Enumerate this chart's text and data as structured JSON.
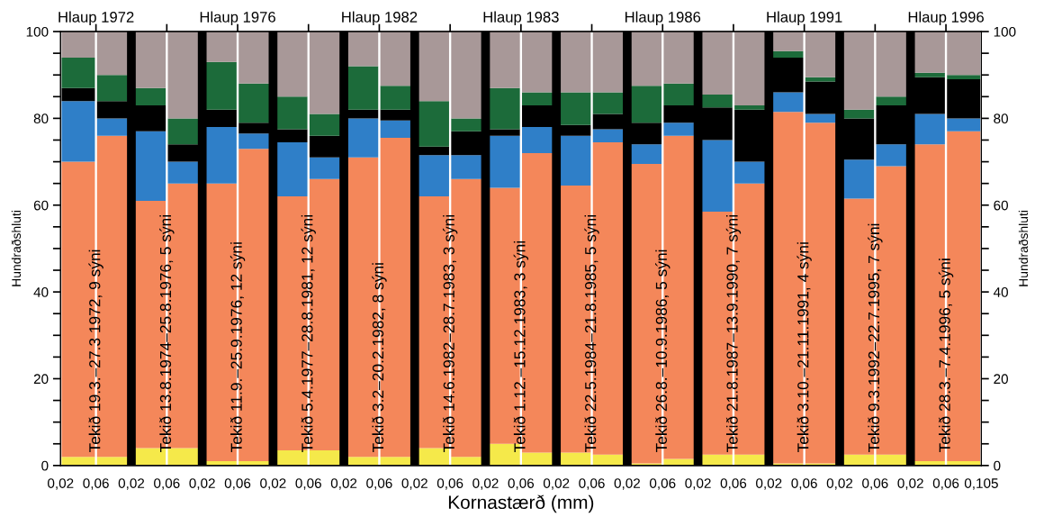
{
  "chart_data": {
    "type": "bar",
    "stacked": true,
    "xlabel": "Kornastærð (mm)",
    "ylabel": "Hundraðshluti",
    "y2label": "Hundraðshluti",
    "categories": [
      null,
      null,
      null,
      null,
      null,
      null,
      null,
      null,
      null,
      null,
      null,
      null,
      null,
      null,
      null,
      null,
      null,
      null,
      null,
      null,
      null,
      null,
      null,
      null,
      null,
      null
    ],
    "series": [
      {
        "color": "#f5e94a",
        "values": [
          2,
          2,
          4,
          4,
          1,
          1,
          3.5,
          3.5,
          2,
          2,
          4,
          2,
          5,
          3,
          3,
          2.5,
          0.5,
          1.5,
          2.5,
          2.5,
          0.5,
          0.5,
          2.5,
          2.5,
          1,
          1
        ]
      },
      {
        "color": "#f4875a",
        "values": [
          68,
          74,
          57,
          61,
          64,
          72,
          58.5,
          62.5,
          69,
          73.5,
          58,
          64,
          59,
          69,
          61.5,
          72,
          69,
          74.5,
          56,
          62.5,
          81,
          78.5,
          59,
          66.5,
          73,
          76
        ]
      },
      {
        "color": "#2f7fc8",
        "values": [
          14,
          4,
          16,
          5,
          13,
          3.5,
          12.5,
          5,
          9,
          4,
          9.5,
          5.5,
          12,
          6,
          11.5,
          3,
          4.5,
          3,
          16.5,
          5,
          4.5,
          2,
          9,
          5,
          7,
          3
        ]
      },
      {
        "color": "#000000",
        "values": [
          3,
          4,
          6,
          4,
          4,
          2.5,
          3,
          5,
          2,
          2.5,
          2,
          5.5,
          1.5,
          5,
          2.5,
          3.5,
          5,
          4,
          7.5,
          12,
          8,
          7.5,
          9.5,
          9,
          8.5,
          9
        ]
      },
      {
        "color": "#1c6b3a",
        "values": [
          7,
          6,
          4,
          6,
          11,
          9,
          7.5,
          5,
          10,
          5.5,
          10.5,
          3,
          9.5,
          3,
          7.5,
          5,
          8.5,
          5,
          3,
          1,
          1.5,
          1,
          2,
          2,
          1,
          1
        ]
      },
      {
        "color": "#a89898",
        "values": [
          6,
          10,
          13,
          20,
          7,
          12,
          15,
          19,
          8,
          12.5,
          16,
          20,
          13,
          14,
          14,
          14,
          12.5,
          12,
          14.5,
          17,
          4.5,
          10.5,
          18,
          15,
          9.5,
          10
        ]
      }
    ],
    "ylim": [
      0,
      100
    ],
    "yticks": [
      0,
      {
        "value": 5,
        "label": null
      },
      {
        "value": 10,
        "label": null
      },
      {
        "value": 15,
        "label": null
      },
      20,
      {
        "value": 25,
        "label": null
      },
      {
        "value": 30,
        "label": null
      },
      {
        "value": 35,
        "label": null
      },
      40,
      {
        "value": 45,
        "label": null
      },
      {
        "value": 50,
        "label": null
      },
      {
        "value": 55,
        "label": null
      },
      60,
      {
        "value": 65,
        "label": null
      },
      {
        "value": 70,
        "label": null
      },
      {
        "value": 75,
        "label": null
      },
      80,
      {
        "value": 85,
        "label": null
      },
      {
        "value": 90,
        "label": null
      },
      {
        "value": 95,
        "label": null
      },
      100
    ],
    "y2lim": [
      0,
      100
    ],
    "y2ticks": [
      0,
      {
        "value": 5,
        "label": null
      },
      {
        "value": 10,
        "label": null
      },
      {
        "value": 15,
        "label": null
      },
      20,
      {
        "value": 25,
        "label": null
      },
      {
        "value": 30,
        "label": null
      },
      {
        "value": 35,
        "label": null
      },
      40,
      {
        "value": 45,
        "label": null
      },
      {
        "value": 50,
        "label": null
      },
      {
        "value": 55,
        "label": null
      },
      60,
      {
        "value": 65,
        "label": null
      },
      {
        "value": 70,
        "label": null
      },
      {
        "value": 75,
        "label": null
      },
      80,
      {
        "value": 85,
        "label": null
      },
      {
        "value": 90,
        "label": null
      },
      {
        "value": 95,
        "label": null
      },
      100
    ],
    "annotations": [
      "0,02",
      "0,06",
      "0,02",
      "0,06",
      "0,02",
      "0,06",
      "0,02",
      "0,06",
      "0,02",
      "0,06",
      "0,02",
      "0,06",
      "0,02",
      "0,06",
      "0,02",
      "0,06",
      "0,02",
      "0,06",
      "0,02",
      "0,06",
      "0,02",
      "0,06",
      "0,02",
      "0,06",
      "0,02",
      "0,06",
      "0,105",
      "Hlaup 1972",
      "Hlaup 1976",
      "Hlaup 1982",
      "Hlaup 1983",
      "Hlaup 1986",
      "Hlaup 1991",
      "Hlaup 1996",
      {
        "text": "Tekið 19.3.–27.3 1972, 9 sýni",
        "y": 3
      },
      {
        "text": "Tekið 13.8.1974–25.8.1976, 5 sýni",
        "y": 3
      },
      {
        "text": "Tekið 11.9.–25.9.1976, 12 sýni",
        "y": 3
      },
      {
        "text": "Tekið 5.4.1977–28.8.1981, 12 sýni",
        "y": 3
      },
      {
        "text": "Tekið 3.2–20.2.1982, 8 sýni",
        "y": 3
      },
      {
        "text": "Tekið 14.6.1982–28.7.1983, 3 sýni",
        "y": 3
      },
      {
        "text": "Tekið 1.12.–15.12.1983, 3 sýni",
        "y": 3
      },
      {
        "text": "Tekið 22.5.1984–21.8.1985, 5 sýni",
        "y": 3
      },
      {
        "text": "Tekið 26.8.–10.9.1986, 5 sýni",
        "y": 3
      },
      {
        "text": "Tekið 21.8.1987–13.9.1990, 7 sýni",
        "y": 3
      },
      {
        "text": "Tekið 3.10.–21.11.1991, 4 sýni",
        "y": 3
      },
      {
        "text": "Tekið 9.3.1992–22.7.1995, 7 sýni",
        "y": 3
      },
      {
        "text": "Tekið 28.3.–7.4.1996, 5 sýni",
        "y": 3
      }
    ],
    "grid": false,
    "legend": false
  }
}
